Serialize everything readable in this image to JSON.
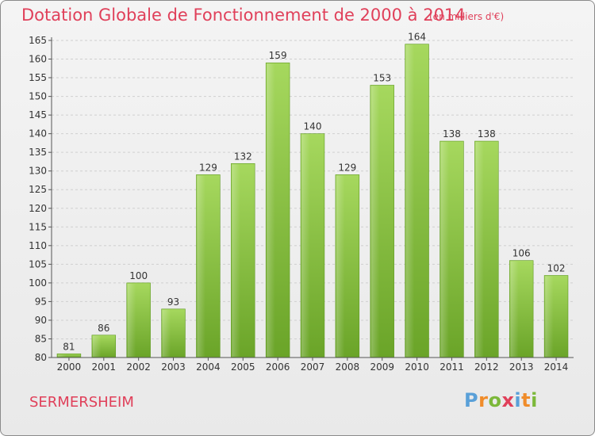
{
  "header": {
    "title": "Dotation Globale de Fonctionnement de 2000 à 2014",
    "unit": "(en milliers d'€)"
  },
  "footer": {
    "place": "SERMERSHEIM",
    "brand": "Proxiti"
  },
  "colors": {
    "title": "#e0405a",
    "bar_light": "#a3d45a",
    "bar_dark": "#6aa428",
    "grid": "#cfcfcf",
    "axis": "#555555"
  },
  "chart_data": {
    "type": "bar",
    "title": "Dotation Globale de Fonctionnement de 2000 à 2014",
    "subtitle": "(en milliers d'€)",
    "xlabel": "",
    "ylabel": "",
    "categories": [
      "2000",
      "2001",
      "2002",
      "2003",
      "2004",
      "2005",
      "2006",
      "2007",
      "2008",
      "2009",
      "2010",
      "2011",
      "2012",
      "2013",
      "2014"
    ],
    "values": [
      81,
      86,
      100,
      93,
      129,
      132,
      159,
      140,
      129,
      153,
      164,
      138,
      138,
      106,
      102
    ],
    "ylim": [
      80,
      165
    ],
    "yticks": [
      80,
      85,
      90,
      95,
      100,
      105,
      110,
      115,
      120,
      125,
      130,
      135,
      140,
      145,
      150,
      155,
      160,
      165
    ],
    "grid": true,
    "legend": "none"
  }
}
